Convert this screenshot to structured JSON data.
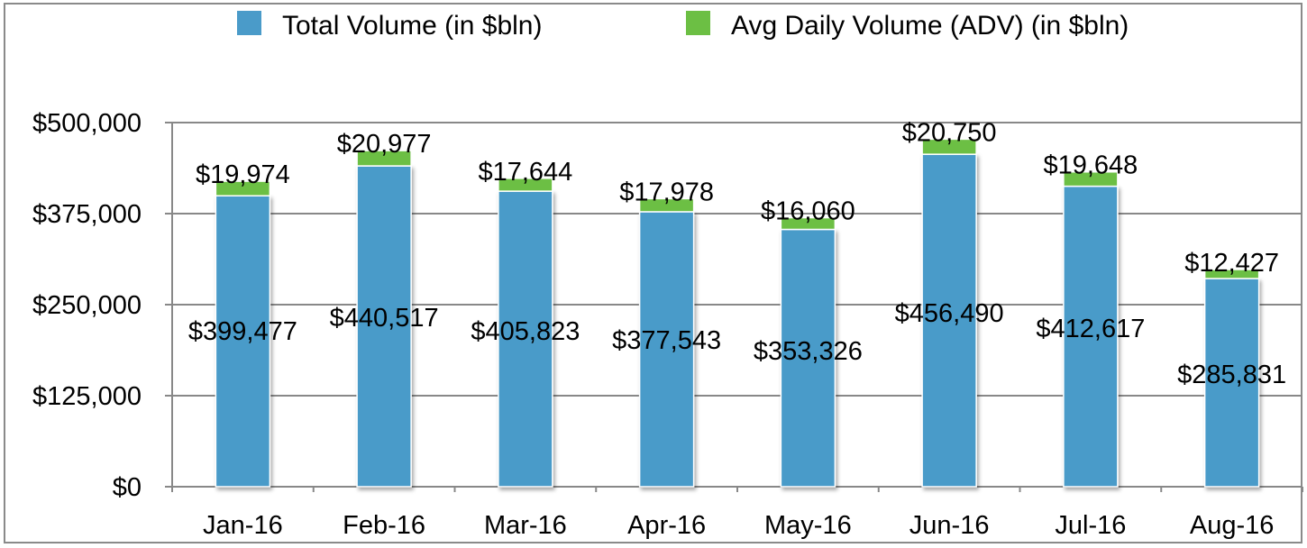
{
  "chart_data": {
    "type": "bar",
    "stacked": true,
    "title": "",
    "xlabel": "",
    "ylabel": "",
    "categories": [
      "Jan-16",
      "Feb-16",
      "Mar-16",
      "Apr-16",
      "May-16",
      "Jun-16",
      "Jul-16",
      "Aug-16"
    ],
    "series": [
      {
        "name": "Total Volume (in $bln)",
        "color": "#4a9bc9",
        "values": [
          399477,
          440517,
          405823,
          377543,
          353326,
          456490,
          412617,
          285831
        ],
        "labels": [
          "$399,477",
          "$440,517",
          "$405,823",
          "$377,543",
          "$353,326",
          "$456,490",
          "$412,617",
          "$285,831"
        ]
      },
      {
        "name": "Avg Daily Volume (ADV) (in $bln)",
        "color": "#6cbf44",
        "values": [
          19974,
          20977,
          17644,
          17978,
          16060,
          20750,
          19648,
          12427
        ],
        "labels": [
          "$19,974",
          "$20,977",
          "$17,644",
          "$17,978",
          "$16,060",
          "$20,750",
          "$19,648",
          "$12,427"
        ]
      }
    ],
    "ylim": [
      0,
      500000
    ],
    "yticks": [
      0,
      125000,
      250000,
      375000,
      500000
    ],
    "ytick_labels": [
      "$0",
      "$125,000",
      "$250,000",
      "$375,000",
      "$500,000"
    ],
    "grid": true,
    "legend_position": "top-center"
  }
}
